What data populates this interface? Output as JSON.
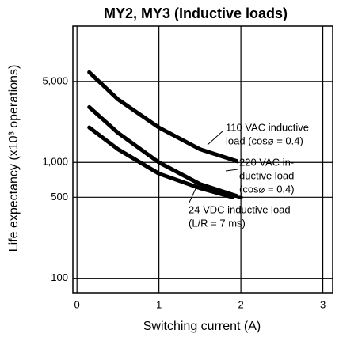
{
  "chart_data": {
    "type": "line",
    "title": "MY2, MY3 (Inductive loads)",
    "x_label": "Switching current (A)",
    "y_label": "Life expectancy (x10³ operations)",
    "xlim": [
      -0.05,
      3.12
    ],
    "xticks": [
      0,
      1,
      2,
      3
    ],
    "ylim": [
      75,
      15000
    ],
    "yticks": [
      {
        "value": 5000,
        "label": "5,000"
      },
      {
        "value": 1000,
        "label": "1,000"
      },
      500,
      100
    ],
    "log_y": true,
    "grid": true,
    "series": [
      {
        "name": "110 VAC",
        "color": "#000000",
        "x": [
          0.15,
          0.5,
          1,
          1.5,
          2
        ],
        "values": [
          6000,
          3500,
          2000,
          1300,
          1000
        ]
      },
      {
        "name": "220 VAC",
        "color": "#000000",
        "x": [
          0.15,
          0.5,
          1,
          1.5,
          2
        ],
        "values": [
          3000,
          1800,
          1000,
          650,
          500
        ]
      },
      {
        "name": "24 VDC",
        "color": "#000000",
        "x": [
          0.15,
          0.5,
          1,
          1.5,
          1.9
        ],
        "values": [
          2000,
          1300,
          800,
          600,
          500
        ]
      }
    ],
    "annotations": [
      [
        "110 VAC inductive",
        "load (cos⌀ = 0.4)"
      ],
      [
        "220 VAC in-",
        "ductive load",
        "(cos⌀ = 0.4)"
      ],
      [
        "24 VDC inductive load",
        "(L/R = 7 ms)"
      ]
    ]
  }
}
